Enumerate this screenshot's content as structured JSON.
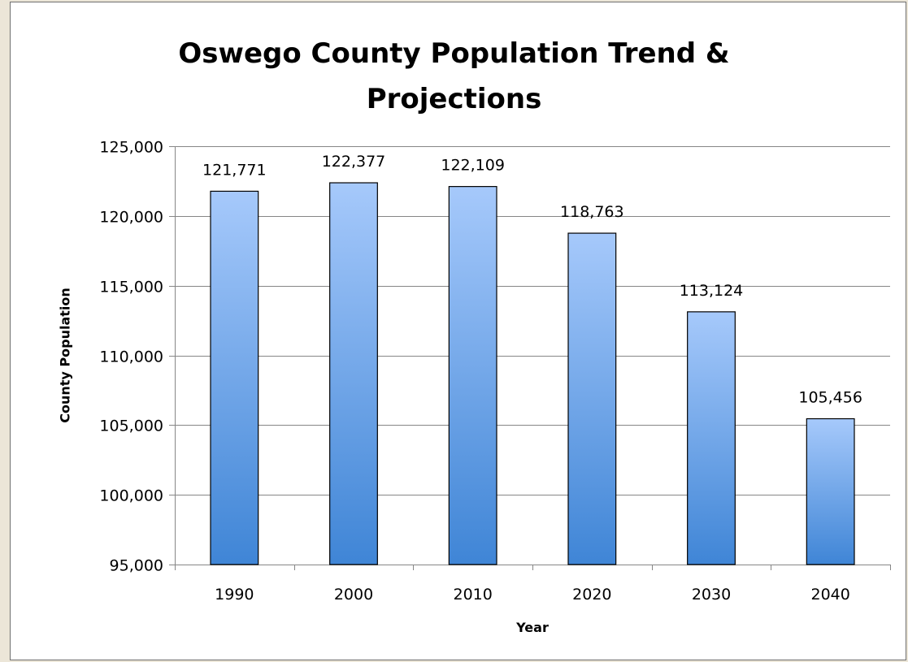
{
  "chart_data": {
    "type": "bar",
    "title": "Oswego County Population Trend & Projections",
    "title_lines": [
      "Oswego County Population Trend &",
      "Projections"
    ],
    "xlabel": "Year",
    "ylabel": "County Population",
    "categories": [
      "1990",
      "2000",
      "2010",
      "2020",
      "2030",
      "2040"
    ],
    "values": [
      121771,
      122377,
      122109,
      118763,
      113124,
      105456
    ],
    "data_labels": [
      "121,771",
      "122,377",
      "122,109",
      "118,763",
      "113,124",
      "105,456"
    ],
    "ylim": [
      95000,
      125000
    ],
    "yticks": [
      95000,
      100000,
      105000,
      110000,
      115000,
      120000,
      125000
    ],
    "ytick_labels": [
      "95,000",
      "100,000",
      "105,000",
      "110,000",
      "115,000",
      "120,000",
      "125,000"
    ],
    "grid": true,
    "legend": "none",
    "colors": {
      "bar_top": "#a6c9fb",
      "bar_bottom": "#3f85d6",
      "bar_outline": "#000000",
      "grid": "#868686",
      "background": "#ffffff",
      "page": "#ece6d8"
    }
  }
}
